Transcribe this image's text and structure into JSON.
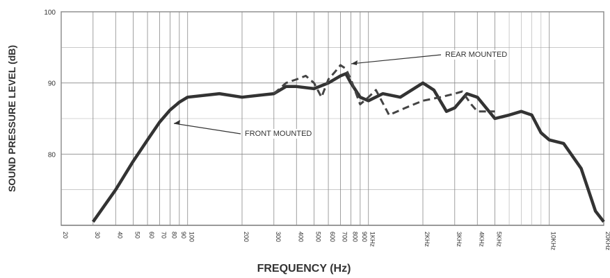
{
  "chart_data": {
    "type": "line",
    "xlabel": "FREQUENCY (Hz)",
    "ylabel": "SOUND PRESSURE LEVEL (dB)",
    "xscale": "log",
    "xlim": [
      20,
      20000
    ],
    "ylim": [
      70,
      100
    ],
    "yticks": [
      80,
      90,
      100
    ],
    "minor_yticks": [
      75,
      85,
      95
    ],
    "xticks": [
      20,
      30,
      40,
      50,
      60,
      70,
      80,
      90,
      100,
      200,
      300,
      400,
      500,
      600,
      700,
      800,
      900,
      {
        "value": 1000,
        "label": "1KHz"
      },
      {
        "value": 2000,
        "label": "2KHz"
      },
      {
        "value": 3000,
        "label": "3KHz"
      },
      {
        "value": 4000,
        "label": "4KHz"
      },
      {
        "value": 5000,
        "label": "5KHz"
      },
      {
        "value": 10000,
        "label": "10KHz"
      },
      {
        "value": 20000,
        "label": "20KHz"
      }
    ],
    "minor_xticks": [
      6000,
      7000,
      8000,
      9000
    ],
    "grid": true,
    "series": [
      {
        "name": "FRONT MOUNTED",
        "color": "#333333",
        "dash": false,
        "x": [
          30,
          40,
          50,
          60,
          70,
          80,
          90,
          100,
          150,
          200,
          300,
          350,
          400,
          500,
          600,
          700,
          750,
          800,
          900,
          1000,
          1200,
          1500,
          2000,
          2300,
          2700,
          3000,
          3500,
          4000,
          5000,
          6000,
          7000,
          8000,
          9000,
          10000,
          12000,
          15000,
          18000,
          20000
        ],
        "values": [
          70.5,
          75,
          79,
          82,
          84.5,
          86.2,
          87.3,
          88,
          88.5,
          88,
          88.5,
          89.5,
          89.5,
          89.2,
          90,
          91,
          91.3,
          90,
          88,
          87.5,
          88.5,
          88,
          90,
          89,
          86,
          86.5,
          88.5,
          88,
          85,
          85.5,
          86,
          85.5,
          83,
          82,
          81.5,
          78,
          72,
          70.5
        ]
      },
      {
        "name": "REAR MOUNTED",
        "color": "#444444",
        "dash": true,
        "x": [
          300,
          350,
          400,
          450,
          500,
          550,
          600,
          650,
          700,
          750,
          800,
          900,
          1000,
          1100,
          1300,
          1600,
          2000,
          2500,
          3000,
          3300,
          3700,
          4000,
          5000
        ],
        "values": [
          88.5,
          90,
          90.5,
          91,
          90,
          88,
          90.5,
          91.5,
          92.5,
          92,
          90.5,
          87,
          88,
          89,
          85.5,
          86.5,
          87.5,
          88,
          88.5,
          88.8,
          87,
          86,
          86
        ]
      }
    ]
  }
}
